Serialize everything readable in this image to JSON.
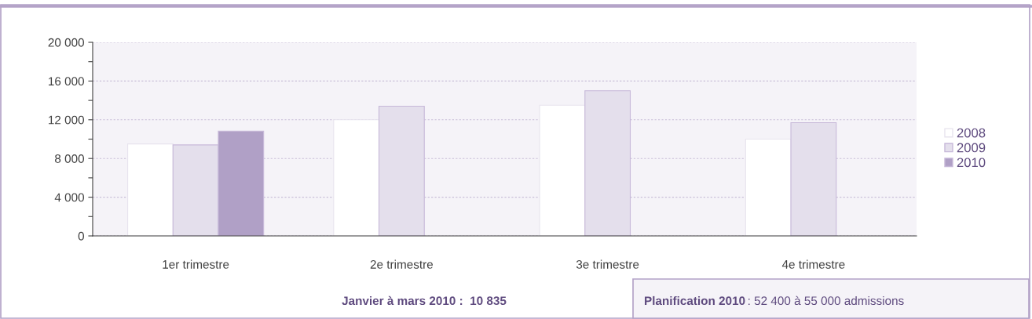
{
  "chart_data": {
    "type": "bar",
    "categories": [
      "1er trimestre",
      "2e trimestre",
      "3e trimestre",
      "4e trimestre"
    ],
    "series": [
      {
        "name": "2008",
        "color": "#ffffff",
        "values": [
          9500,
          12000,
          13500,
          10000
        ]
      },
      {
        "name": "2009",
        "color": "#e4dfec",
        "values": [
          9400,
          13400,
          15000,
          11700
        ]
      },
      {
        "name": "2010",
        "color": "#b0a0c6",
        "values": [
          10835,
          null,
          null,
          null
        ]
      }
    ],
    "ylim": [
      0,
      20000
    ],
    "yticks": [
      {
        "value": 0,
        "label": "0"
      },
      {
        "value": 2000,
        "label": null
      },
      {
        "value": 4000,
        "label": "4 000"
      },
      {
        "value": 6000,
        "label": null
      },
      {
        "value": 8000,
        "label": "8 000"
      },
      {
        "value": 10000,
        "label": null
      },
      {
        "value": 12000,
        "label": "12 000"
      },
      {
        "value": 14000,
        "label": null
      },
      {
        "value": 16000,
        "label": "16 000"
      },
      {
        "value": 18000,
        "label": null
      },
      {
        "value": 20000,
        "label": "20 000"
      }
    ],
    "grid": "y",
    "legend": "right",
    "annotations": [
      "Janvier à mars 2010 :  10 835",
      "Planification 2010",
      ": 52 400 à 55 000 admissions"
    ]
  }
}
